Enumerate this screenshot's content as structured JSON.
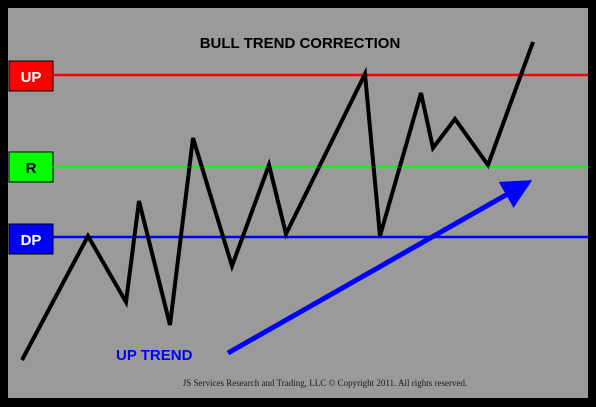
{
  "title": "BULL TREND CORRECTION",
  "levels": [
    {
      "key": "up",
      "label": "UP",
      "color": "#ff0000",
      "label_text_color": "#ffffff"
    },
    {
      "key": "r",
      "label": "R",
      "color": "#00ff00",
      "label_text_color": "#000000"
    },
    {
      "key": "dp",
      "label": "DP",
      "color": "#0000ff",
      "label_text_color": "#ffffff"
    }
  ],
  "trend_label": "UP TREND",
  "trend_color": "#0000ff",
  "price_line_color": "#000000",
  "background_color": "#9a9a9a",
  "frame_color": "#000000",
  "copyright": "JS Services Research  and Trading, LLC © Copyright 2011. All rights reserved."
}
